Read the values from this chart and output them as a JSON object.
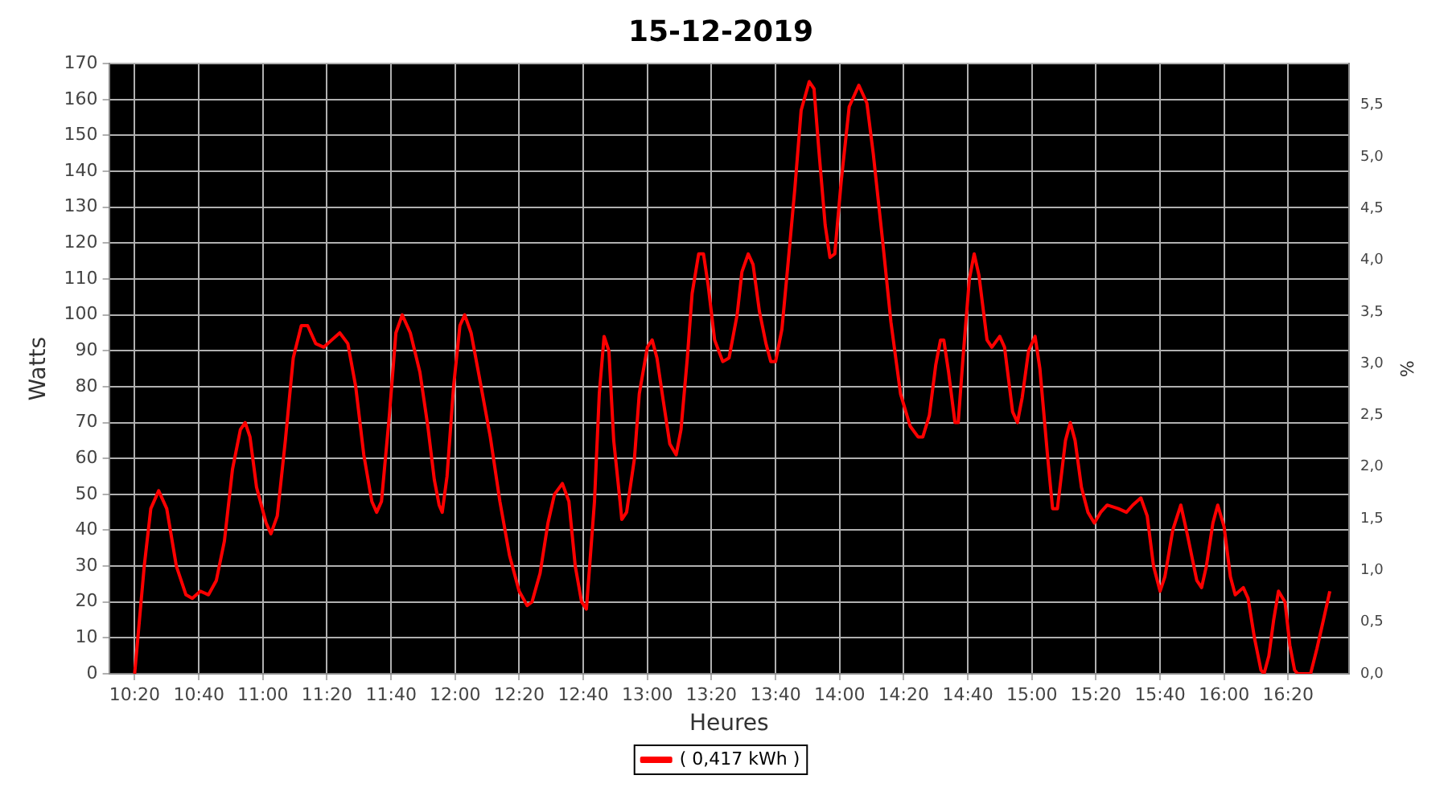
{
  "chart_data": {
    "type": "line",
    "title": "15-12-2019",
    "xlabel": "Heures",
    "ylabel": "Watts",
    "y2label": "%",
    "xlim": [
      10.2,
      16.65
    ],
    "xticks": [
      {
        "value": 10.333,
        "label": "10:20"
      },
      {
        "value": 10.667,
        "label": "10:40"
      },
      {
        "value": 11,
        "label": "11:00"
      },
      {
        "value": 11.333,
        "label": "11:20"
      },
      {
        "value": 11.667,
        "label": "11:40"
      },
      {
        "value": 12,
        "label": "12:00"
      },
      {
        "value": 12.333,
        "label": "12:20"
      },
      {
        "value": 12.667,
        "label": "12:40"
      },
      {
        "value": 13,
        "label": "13:00"
      },
      {
        "value": 13.333,
        "label": "13:20"
      },
      {
        "value": 13.667,
        "label": "13:40"
      },
      {
        "value": 14,
        "label": "14:00"
      },
      {
        "value": 14.333,
        "label": "14:20"
      },
      {
        "value": 14.667,
        "label": "14:40"
      },
      {
        "value": 15,
        "label": "15:00"
      },
      {
        "value": 15.333,
        "label": "15:20"
      },
      {
        "value": 15.667,
        "label": "15:40"
      },
      {
        "value": 16,
        "label": "16:00"
      },
      {
        "value": 16.333,
        "label": "16:20"
      }
    ],
    "ylim": [
      0,
      170
    ],
    "yticks": [
      0,
      10,
      20,
      30,
      40,
      50,
      60,
      70,
      80,
      90,
      100,
      110,
      120,
      130,
      140,
      150,
      160,
      170
    ],
    "y2lim": [
      0,
      5.9
    ],
    "y2ticks": [
      {
        "value": 0,
        "label": "0,0"
      },
      {
        "value": 0.5,
        "label": "0,5"
      },
      {
        "value": 1,
        "label": "1,0"
      },
      {
        "value": 1.5,
        "label": "1,5"
      },
      {
        "value": 2,
        "label": "2,0"
      },
      {
        "value": 2.5,
        "label": "2,5"
      },
      {
        "value": 3,
        "label": "3,0"
      },
      {
        "value": 3.5,
        "label": "3,5"
      },
      {
        "value": 4,
        "label": "4,0"
      },
      {
        "value": 4.5,
        "label": "4,5"
      },
      {
        "value": 5,
        "label": "5,0"
      },
      {
        "value": 5.5,
        "label": "5,5"
      }
    ],
    "grid": true,
    "legend": "bottom",
    "marker": "none",
    "line_style": "solid",
    "series": [
      {
        "name": "( 0,417 kWh )",
        "color": "#ff0000",
        "x": [
          10.333,
          10.383,
          10.417,
          10.458,
          10.5,
          10.55,
          10.6,
          10.633,
          10.675,
          10.717,
          10.758,
          10.8,
          10.842,
          10.883,
          10.908,
          10.933,
          10.967,
          11.017,
          11.042,
          11.075,
          11.117,
          11.158,
          11.2,
          11.233,
          11.275,
          11.317,
          11.358,
          11.4,
          11.442,
          11.483,
          11.525,
          11.567,
          11.592,
          11.617,
          11.658,
          11.692,
          11.725,
          11.767,
          11.817,
          11.858,
          11.892,
          11.917,
          11.933,
          11.958,
          11.992,
          12.025,
          12.05,
          12.083,
          12.125,
          12.183,
          12.233,
          12.283,
          12.333,
          12.375,
          12.4,
          12.442,
          12.483,
          12.517,
          12.558,
          12.592,
          12.625,
          12.658,
          12.683,
          12.725,
          12.75,
          12.775,
          12.8,
          12.825,
          12.858,
          12.867,
          12.892,
          12.933,
          12.958,
          13.0,
          13.025,
          13.05,
          13.083,
          13.117,
          13.15,
          13.175,
          13.208,
          13.233,
          13.267,
          13.292,
          13.317,
          13.35,
          13.392,
          13.425,
          13.467,
          13.492,
          13.525,
          13.55,
          13.583,
          13.617,
          13.642,
          13.667,
          13.7,
          13.733,
          13.767,
          13.8,
          13.842,
          13.867,
          13.892,
          13.925,
          13.95,
          13.975,
          14.008,
          14.05,
          14.1,
          14.142,
          14.175,
          14.225,
          14.267,
          14.317,
          14.367,
          14.408,
          14.433,
          14.467,
          14.5,
          14.525,
          14.542,
          14.567,
          14.6,
          14.617,
          14.642,
          14.675,
          14.7,
          14.725,
          14.767,
          14.792,
          14.833,
          14.858,
          14.9,
          14.925,
          14.95,
          14.983,
          15.017,
          15.042,
          15.083,
          15.108,
          15.133,
          15.175,
          15.2,
          15.225,
          15.258,
          15.292,
          15.325,
          15.358,
          15.392,
          15.45,
          15.492,
          15.525,
          15.567,
          15.6,
          15.633,
          15.667,
          15.692,
          15.733,
          15.775,
          15.808,
          15.858,
          15.883,
          15.908,
          15.942,
          15.967,
          16.0,
          16.033,
          16.058,
          16.1,
          16.125,
          16.158,
          16.192,
          16.208,
          16.233,
          16.258,
          16.283,
          16.317,
          16.342,
          16.367,
          16.383,
          16.45,
          16.483,
          16.517,
          16.55
        ],
        "values": [
          0,
          30,
          46,
          51,
          46,
          30,
          22,
          21,
          23,
          22,
          26,
          37,
          57,
          68,
          70,
          66,
          52,
          42,
          39,
          44,
          65,
          88,
          97,
          97,
          92,
          91,
          93,
          95,
          92,
          80,
          61,
          48,
          45,
          48,
          72,
          95,
          100,
          95,
          84,
          69,
          54,
          47,
          45,
          55,
          80,
          97,
          100,
          95,
          83,
          66,
          48,
          33,
          23,
          19,
          20,
          28,
          42,
          50,
          53,
          48,
          30,
          20,
          18,
          48,
          78,
          94,
          90,
          65,
          48,
          43,
          45,
          60,
          78,
          91,
          93,
          88,
          76,
          64,
          61,
          68,
          88,
          106,
          117,
          117,
          108,
          93,
          87,
          88,
          100,
          112,
          117,
          114,
          101,
          92,
          87,
          87,
          96,
          115,
          135,
          157,
          165,
          163,
          146,
          125,
          116,
          117,
          137,
          158,
          164,
          159,
          145,
          120,
          98,
          78,
          69,
          66,
          66,
          72,
          86,
          93,
          93,
          84,
          70,
          70,
          88,
          110,
          117,
          111,
          93,
          91,
          94,
          91,
          73,
          70,
          77,
          90,
          94,
          85,
          60,
          46,
          46,
          65,
          70,
          65,
          52,
          45,
          42,
          45,
          47,
          46,
          45,
          47,
          49,
          44,
          30,
          23,
          27,
          40,
          47,
          39,
          26,
          24,
          30,
          42,
          47,
          41,
          27,
          22,
          24,
          21,
          10,
          1,
          0,
          5,
          15,
          23,
          20,
          8,
          1,
          0,
          0,
          7,
          15,
          23
        ]
      }
    ]
  }
}
